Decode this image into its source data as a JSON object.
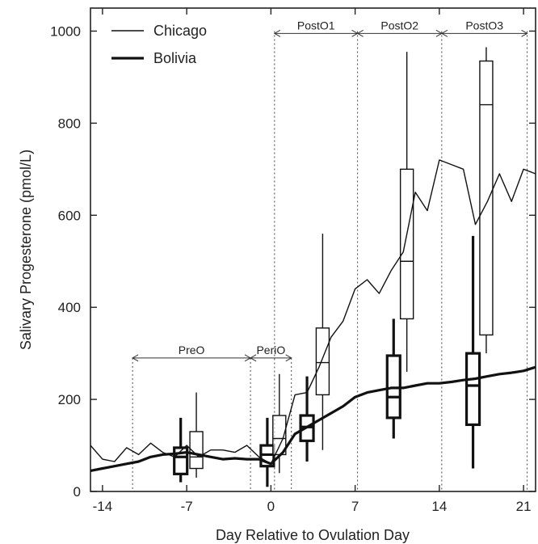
{
  "chart_data": {
    "type": "line",
    "xlabel": "Day Relative to Ovulation Day",
    "ylabel": "Salivary Progesterone (pmol/L)",
    "xlim": [
      -15,
      22
    ],
    "ylim": [
      0,
      1050
    ],
    "xticks": [
      -14,
      -7,
      0,
      7,
      14,
      21
    ],
    "yticks": [
      0,
      200,
      400,
      600,
      800,
      1000
    ],
    "legend": {
      "placement": "top-left"
    },
    "grid": false,
    "series": [
      {
        "name": "Chicago",
        "style": "thin",
        "x": [
          -15,
          -14,
          -13,
          -12,
          -11,
          -10,
          -9,
          -8,
          -7,
          -6,
          -5,
          -4,
          -3,
          -2,
          -1,
          0,
          1,
          2,
          3,
          4,
          5,
          6,
          7,
          8,
          9,
          10,
          11,
          12,
          13,
          14,
          15,
          16,
          17,
          18,
          19,
          20,
          21,
          22
        ],
        "y": [
          100,
          70,
          65,
          95,
          80,
          105,
          85,
          75,
          100,
          75,
          90,
          90,
          85,
          100,
          75,
          60,
          115,
          210,
          215,
          270,
          335,
          370,
          440,
          460,
          430,
          480,
          520,
          650,
          610,
          720,
          710,
          700,
          580,
          630,
          690,
          630,
          700,
          690
        ]
      },
      {
        "name": "Bolivia",
        "style": "thick",
        "x": [
          -15,
          -14,
          -13,
          -12,
          -11,
          -10,
          -9,
          -8,
          -7,
          -6,
          -5,
          -4,
          -3,
          -2,
          -1,
          0,
          1,
          2,
          3,
          4,
          5,
          6,
          7,
          8,
          9,
          10,
          11,
          12,
          13,
          14,
          15,
          16,
          17,
          18,
          19,
          20,
          21,
          22
        ],
        "y": [
          45,
          50,
          55,
          60,
          65,
          75,
          80,
          82,
          85,
          80,
          75,
          70,
          72,
          70,
          70,
          60,
          85,
          125,
          140,
          155,
          170,
          185,
          205,
          215,
          220,
          225,
          225,
          230,
          235,
          235,
          238,
          242,
          245,
          250,
          255,
          258,
          262,
          270
        ]
      }
    ],
    "boxplots": [
      {
        "series": "Bolivia",
        "x": -7.5,
        "min": 20,
        "q1": 38,
        "median": 75,
        "q3": 95,
        "max": 160
      },
      {
        "series": "Chicago",
        "x": -6.2,
        "min": 30,
        "q1": 50,
        "median": 75,
        "q3": 130,
        "max": 215
      },
      {
        "series": "Bolivia",
        "x": -0.3,
        "min": 10,
        "q1": 55,
        "median": 80,
        "q3": 100,
        "max": 160
      },
      {
        "series": "Chicago",
        "x": 0.7,
        "min": 40,
        "q1": 80,
        "median": 115,
        "q3": 165,
        "max": 255
      },
      {
        "series": "Bolivia",
        "x": 3.0,
        "min": 65,
        "q1": 110,
        "median": 140,
        "q3": 165,
        "max": 250
      },
      {
        "series": "Chicago",
        "x": 4.3,
        "min": 90,
        "q1": 210,
        "median": 280,
        "q3": 355,
        "max": 560
      },
      {
        "series": "Bolivia",
        "x": 10.2,
        "min": 115,
        "q1": 160,
        "median": 205,
        "q3": 295,
        "max": 375
      },
      {
        "series": "Chicago",
        "x": 11.3,
        "min": 260,
        "q1": 375,
        "median": 500,
        "q3": 700,
        "max": 955
      },
      {
        "series": "Bolivia",
        "x": 16.8,
        "min": 50,
        "q1": 145,
        "median": 230,
        "q3": 300,
        "max": 555
      },
      {
        "series": "Chicago",
        "x": 17.9,
        "min": 300,
        "q1": 340,
        "median": 840,
        "q3": 935,
        "max": 965
      }
    ],
    "phases": [
      {
        "label": "PreO",
        "start": -11.5,
        "end": -1.7,
        "y_level": 290,
        "line_top": 290
      },
      {
        "label": "PeriO",
        "start": -1.7,
        "end": 1.7,
        "y_level": 290,
        "line_top": 290
      },
      {
        "label": "PostO1",
        "start": 0.3,
        "end": 7.2,
        "y_level": 995,
        "line_top": 1000
      },
      {
        "label": "PostO2",
        "start": 7.2,
        "end": 14.2,
        "y_level": 995,
        "line_top": 1000
      },
      {
        "label": "PostO3",
        "start": 14.2,
        "end": 21.3,
        "y_level": 995,
        "line_top": 1000
      }
    ]
  }
}
